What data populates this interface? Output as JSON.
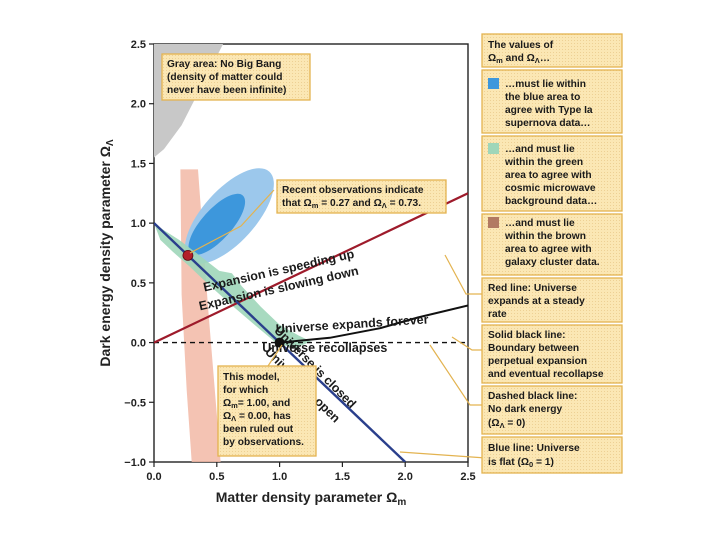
{
  "colors": {
    "box_fill": "#fbe7b4",
    "box_stroke": "#e3b350",
    "leader": "#e3b350",
    "gray_region": "#c8c8c8",
    "blue_outer": "#9cc8ec",
    "blue_inner": "#3d97dc",
    "green": "#9fd6b9",
    "brown": "#f2b9a6",
    "red_line": "#9e1b2b",
    "blue_line": "#2a3f8c",
    "black": "#111111"
  },
  "chart_data": {
    "type": "scatter",
    "xlabel_prefix": "Matter density parameter ",
    "xlabel_symbol": "Ω",
    "xlabel_sub": "m",
    "ylabel_prefix": "Dark energy density parameter ",
    "ylabel_symbol": "Ω",
    "ylabel_sub": "Λ",
    "xlim": [
      0.0,
      2.5
    ],
    "ylim": [
      -1.0,
      2.5
    ],
    "x_ticks": [
      0.0,
      0.5,
      1.0,
      1.5,
      2.0,
      2.5
    ],
    "x_tick_labels": [
      "0.0",
      "0.5",
      "1.0",
      "1.5",
      "2.0",
      "2.5"
    ],
    "y_ticks": [
      -1.0,
      -0.5,
      0.0,
      0.5,
      1.0,
      1.5,
      2.0,
      2.5
    ],
    "y_tick_labels": [
      "−1.0",
      "−0.5",
      "0.0",
      "0.5",
      "1.0",
      "1.5",
      "2.0",
      "2.5"
    ],
    "points": [
      {
        "name": "observed",
        "x": 0.27,
        "y": 0.73,
        "color": "#b3202a"
      },
      {
        "name": "ruled_out_model",
        "x": 1.0,
        "y": 0.0,
        "color": "#111111"
      }
    ],
    "lines": {
      "red_line": {
        "from": [
          0.0,
          0.0
        ],
        "to": [
          2.5,
          1.25
        ]
      },
      "blue_line": {
        "from": [
          0.0,
          1.0
        ],
        "to": [
          2.0,
          -1.0
        ]
      },
      "dashed_line": {
        "from": [
          0.0,
          0.0
        ],
        "to": [
          2.5,
          0.0
        ]
      },
      "black_curve": [
        [
          1.0,
          0.0
        ],
        [
          1.4,
          0.04
        ],
        [
          1.8,
          0.12
        ],
        [
          2.1,
          0.21
        ],
        [
          2.5,
          0.31
        ]
      ]
    },
    "regions": {
      "gray": [
        [
          0.0,
          2.5
        ],
        [
          0.55,
          2.5
        ],
        [
          0.38,
          2.15
        ],
        [
          0.22,
          1.82
        ],
        [
          0.08,
          1.62
        ],
        [
          0.0,
          1.55
        ]
      ],
      "brown": [
        [
          0.21,
          1.45
        ],
        [
          0.35,
          1.45
        ],
        [
          0.43,
          0.3
        ],
        [
          0.5,
          -0.6
        ],
        [
          0.53,
          -1.0
        ],
        [
          0.3,
          -1.0
        ],
        [
          0.26,
          -0.4
        ],
        [
          0.22,
          0.4
        ]
      ],
      "blue_outer": {
        "cx": 0.6,
        "cy": 1.06,
        "rx": 0.21,
        "ry": 1.0,
        "angle": 42
      },
      "blue_inner": {
        "cx": 0.5,
        "cy": 0.99,
        "rx": 0.12,
        "ry": 0.65,
        "angle": 42
      },
      "green": [
        [
          0.0,
          1.0
        ],
        [
          0.08,
          0.94
        ],
        [
          0.2,
          0.86
        ],
        [
          0.35,
          0.74
        ],
        [
          0.52,
          0.6
        ],
        [
          0.62,
          0.58
        ],
        [
          0.7,
          0.47
        ],
        [
          0.85,
          0.3
        ],
        [
          1.0,
          0.15
        ],
        [
          1.15,
          0.06
        ],
        [
          1.25,
          0.01
        ],
        [
          1.12,
          -0.05
        ],
        [
          0.97,
          0.0
        ],
        [
          0.8,
          0.15
        ],
        [
          0.6,
          0.33
        ],
        [
          0.42,
          0.5
        ],
        [
          0.28,
          0.64
        ],
        [
          0.15,
          0.76
        ],
        [
          0.05,
          0.86
        ]
      ]
    },
    "line_labels": [
      {
        "text": "Expansion is speeding up",
        "x": 1.0,
        "y": 0.57,
        "angle": -12.7
      },
      {
        "text": "Expansion is slowing down",
        "x": 1.0,
        "y": 0.42,
        "angle": -12.7
      },
      {
        "text": "Universe expands forever",
        "x": 1.58,
        "y": 0.12,
        "angle": -3.6
      },
      {
        "text": "Universe recollapses",
        "x": 1.36,
        "y": -0.08,
        "angle": 0
      },
      {
        "text": "Universe is closed",
        "x": 1.26,
        "y": -0.23,
        "angle": 45
      },
      {
        "text": "Universe is open",
        "x": 1.16,
        "y": -0.38,
        "angle": 45
      }
    ]
  },
  "callouts": {
    "gray_area": [
      "Gray area: No Big Bang",
      "(density of matter could",
      "never have been infinite)"
    ],
    "recent_observations": [
      "Recent observations indicate",
      "that Ω = 0.27 and Ω = 0.73."
    ],
    "recent_obs_line2_parts": {
      "pre": "that ",
      "o1": "Ω",
      "s1": "m",
      "mid": " = 0.27 and ",
      "o2": "Ω",
      "s2": "Λ",
      "post": " = 0.73."
    },
    "model": {
      "l1": "This model,",
      "l2": "for which",
      "l3_o": "Ω",
      "l3_s": "m",
      "l3_t": "= 1.00, and",
      "l4_o": "Ω",
      "l4_s": "Λ",
      "l4_t": " = 0.00, has",
      "l5": "been ruled out",
      "l6": "by observations."
    }
  },
  "legend": {
    "title_l1": "The values of",
    "title_l2_o1": "Ω",
    "title_l2_s1": "m",
    "title_l2_mid": " and ",
    "title_l2_o2": "Ω",
    "title_l2_s2": "Λ",
    "title_l2_end": "…",
    "blue": [
      "…must lie within",
      "the blue area to",
      "agree with Type Ia",
      "supernova data…"
    ],
    "green": [
      "…and must lie",
      "within the green",
      "area to agree with",
      "cosmic microwave",
      "background data…"
    ],
    "brown": [
      "…and must lie",
      "within the brown",
      "area to agree with",
      "galaxy cluster data."
    ],
    "red_line": [
      "Red line: Universe",
      "expands at a steady",
      "rate"
    ],
    "solid_black": [
      "Solid black line:",
      "Boundary between",
      "perpetual expansion",
      "and eventual recollapse"
    ],
    "dashed_black": [
      "Dashed black line:",
      "No dark energy"
    ],
    "dashed_black_eq": {
      "open": "(",
      "o": "Ω",
      "s": "Λ",
      "t": " = 0)"
    },
    "blue_line": [
      "Blue line: Universe"
    ],
    "blue_line_eq": {
      "t1": "is flat (",
      "o": "Ω",
      "s": "0",
      "t2": " = 1)"
    }
  }
}
